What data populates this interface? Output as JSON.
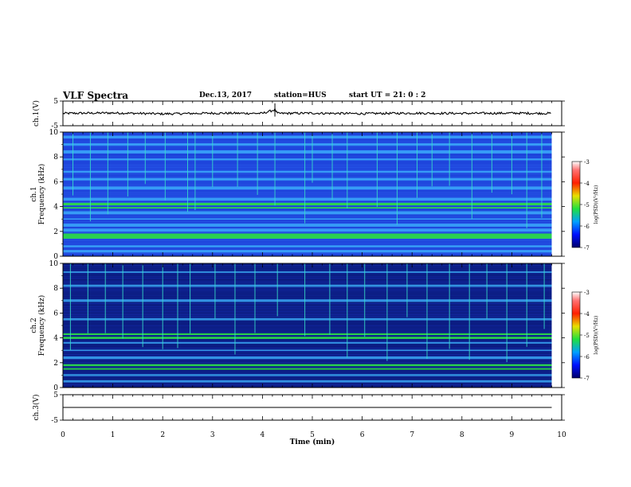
{
  "header": {
    "title": "VLF Spectra",
    "date": "Dec.13, 2017",
    "station_label": "station=",
    "station": "HUS",
    "start_label": "start UT =",
    "start_time": "21: 0 : 2"
  },
  "chart_data": [
    {
      "type": "line",
      "panel": "ch1-waveform",
      "ylabel": "ch.1(V)",
      "ylim": [
        -5,
        5
      ],
      "yticks": [
        "5",
        "-5"
      ],
      "x": [
        0,
        1,
        2,
        3,
        4,
        4.25,
        4.3,
        5,
        6,
        7,
        8,
        9,
        9.8
      ],
      "values": [
        0,
        0.2,
        -0.2,
        0.1,
        0,
        1.5,
        0,
        0.1,
        -0.1,
        0.1,
        0,
        0.1,
        0
      ],
      "xlim": [
        0,
        10
      ]
    },
    {
      "type": "heatmap",
      "panel": "ch1-spectrogram",
      "ylabel": "ch.1\nFrequency (kHz)",
      "ylim": [
        0,
        10
      ],
      "yticks": [
        "0",
        "2",
        "4",
        "6",
        "8",
        "10"
      ],
      "xlim": [
        0,
        10
      ],
      "data_extent_min": 9.8,
      "colorbar": {
        "label": "log(PSD)(V²/Hz)",
        "range": [
          -7,
          -3
        ],
        "ticks": [
          "-3",
          "-4",
          "-5",
          "-6",
          "-7"
        ]
      },
      "bands_khz": [
        0.4,
        0.8,
        1.5,
        1.7,
        2.1,
        2.5,
        3.0,
        3.5,
        3.9,
        4.2,
        4.6,
        5.5,
        6.2,
        6.8,
        7.8,
        8.4,
        9.0,
        9.6
      ],
      "spikes_min": [
        0.2,
        0.55,
        0.9,
        1.3,
        1.65,
        2.05,
        2.5,
        2.65,
        3.0,
        3.5,
        3.9,
        4.25,
        4.85,
        5.0,
        5.4,
        5.7,
        6.3,
        6.7,
        7.1,
        7.4,
        7.75,
        8.2,
        8.6,
        9.0,
        9.3,
        9.6
      ]
    },
    {
      "type": "heatmap",
      "panel": "ch2-spectrogram",
      "ylabel": "ch.2\nFrequency (kHz)",
      "ylim": [
        0,
        10
      ],
      "yticks": [
        "0",
        "2",
        "4",
        "6",
        "8",
        "10"
      ],
      "xlim": [
        0,
        10
      ],
      "data_extent_min": 9.8,
      "colorbar": {
        "label": "log(PSD)(V²/Hz)",
        "range": [
          -7,
          -3
        ],
        "ticks": [
          "-3",
          "-4",
          "-5",
          "-6",
          "-7"
        ]
      },
      "bands_khz": [
        0.5,
        1.0,
        1.5,
        1.8,
        2.4,
        3.0,
        3.6,
        4.0,
        4.3,
        5.5,
        7.0,
        8.2,
        9.3
      ],
      "spikes_min": [
        0.15,
        0.5,
        0.85,
        1.2,
        1.6,
        2.0,
        2.3,
        2.55,
        3.05,
        3.45,
        3.85,
        4.3,
        4.85,
        5.35,
        5.7,
        6.05,
        6.5,
        6.9,
        7.3,
        7.75,
        8.15,
        8.5,
        8.9,
        9.3,
        9.65
      ]
    },
    {
      "type": "line",
      "panel": "ch3-waveform",
      "ylabel": "ch.3(V)",
      "ylim": [
        -5,
        5
      ],
      "yticks": [
        "5",
        "-5"
      ],
      "x": [
        0,
        9.8
      ],
      "values": [
        0,
        0
      ],
      "xlim": [
        0,
        10
      ],
      "xlabel": "Time (min)",
      "xticks": [
        "0",
        "1",
        "2",
        "3",
        "4",
        "5",
        "6",
        "7",
        "8",
        "9",
        "10"
      ]
    }
  ],
  "colors": {
    "band": "#2bd84a",
    "spike": "#37e0c8",
    "background_ch1": "#1b3fd8",
    "background_ch2": "#0a1a7a"
  }
}
